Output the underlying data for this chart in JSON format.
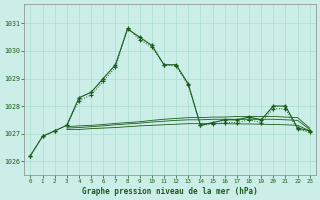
{
  "title": "Graphe pression niveau de la mer (hPa)",
  "background_color": "#cceee8",
  "grid_color": "#aaddcc",
  "line_color": "#1a5c1a",
  "xlim": [
    -0.5,
    23.5
  ],
  "ylim": [
    1025.5,
    1031.7
  ],
  "yticks": [
    1026,
    1027,
    1028,
    1029,
    1030,
    1031
  ],
  "xticks": [
    0,
    1,
    2,
    3,
    4,
    5,
    6,
    7,
    8,
    9,
    10,
    11,
    12,
    13,
    14,
    15,
    16,
    17,
    18,
    19,
    20,
    21,
    22,
    23
  ],
  "series_main": [
    1026.2,
    1026.9,
    1027.1,
    1027.3,
    1028.3,
    1028.5,
    1029.0,
    1029.5,
    1030.8,
    1030.5,
    1030.2,
    1029.5,
    1029.5,
    1028.8,
    1027.3,
    1027.4,
    1027.5,
    1027.5,
    1027.6,
    1027.5,
    1028.0,
    1028.0,
    1027.2,
    1027.1
  ],
  "series_dot": [
    1026.2,
    1026.9,
    1027.1,
    1027.3,
    1028.2,
    1028.4,
    1028.9,
    1029.4,
    1030.85,
    1030.4,
    1030.15,
    1029.5,
    1029.45,
    1028.75,
    1027.3,
    1027.35,
    1027.4,
    1027.4,
    1027.5,
    1027.4,
    1027.9,
    1027.9,
    1027.15,
    1027.05
  ],
  "flat1_x": [
    3,
    4,
    5,
    6,
    7,
    8,
    9,
    10,
    11,
    12,
    13,
    14,
    15,
    16,
    17,
    18,
    19,
    20,
    21,
    22,
    23
  ],
  "flat1_y": [
    1027.15,
    1027.15,
    1027.18,
    1027.2,
    1027.22,
    1027.25,
    1027.28,
    1027.3,
    1027.32,
    1027.34,
    1027.36,
    1027.36,
    1027.36,
    1027.36,
    1027.35,
    1027.35,
    1027.34,
    1027.33,
    1027.32,
    1027.3,
    1027.1
  ],
  "flat2_x": [
    3,
    4,
    5,
    6,
    7,
    8,
    9,
    10,
    11,
    12,
    13,
    14,
    15,
    16,
    17,
    18,
    19,
    20,
    21,
    22,
    23
  ],
  "flat2_y": [
    1027.2,
    1027.22,
    1027.25,
    1027.28,
    1027.32,
    1027.35,
    1027.38,
    1027.42,
    1027.45,
    1027.48,
    1027.5,
    1027.5,
    1027.52,
    1027.52,
    1027.52,
    1027.52,
    1027.52,
    1027.52,
    1027.5,
    1027.48,
    1027.15
  ],
  "flat3_x": [
    3,
    4,
    5,
    6,
    7,
    8,
    9,
    10,
    11,
    12,
    13,
    14,
    15,
    16,
    17,
    18,
    19,
    20,
    21,
    22,
    23
  ],
  "flat3_y": [
    1027.25,
    1027.28,
    1027.3,
    1027.33,
    1027.37,
    1027.4,
    1027.43,
    1027.48,
    1027.52,
    1027.55,
    1027.58,
    1027.58,
    1027.6,
    1027.6,
    1027.62,
    1027.62,
    1027.62,
    1027.62,
    1027.6,
    1027.58,
    1027.2
  ]
}
